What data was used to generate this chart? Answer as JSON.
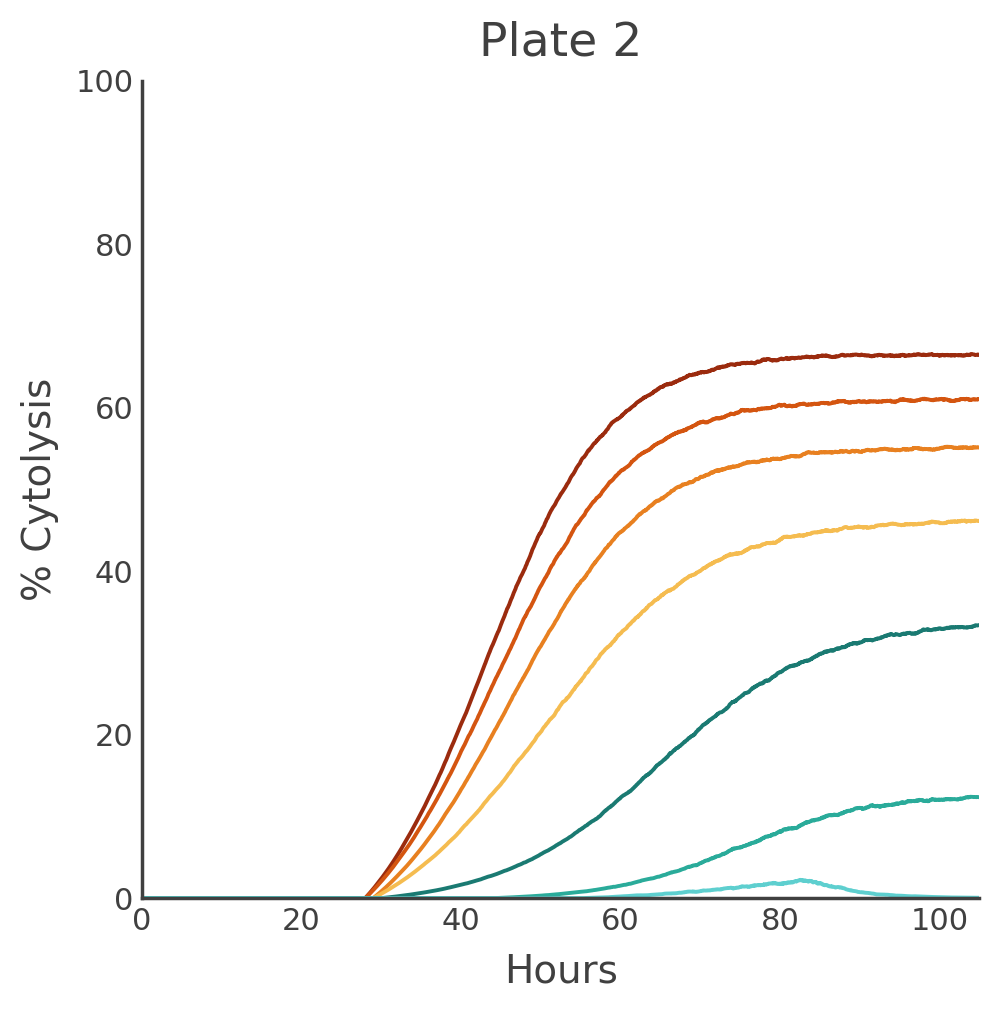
{
  "title": "Plate 2",
  "xlabel": "Hours",
  "ylabel": "% Cytolysis",
  "xlim": [
    0,
    105
  ],
  "ylim": [
    0,
    100
  ],
  "xticks": [
    0,
    20,
    40,
    60,
    80,
    100
  ],
  "yticks": [
    0,
    20,
    40,
    60,
    80,
    100
  ],
  "background_color": "#ffffff",
  "axis_color": "#404040",
  "title_fontsize": 34,
  "label_fontsize": 28,
  "tick_fontsize": 22,
  "line_width": 2.8,
  "curves": [
    {
      "color": "#9b2b0e",
      "max_val": 76,
      "midpoint": 43,
      "steepness": 0.13,
      "start": 28
    },
    {
      "color": "#d45510",
      "max_val": 70,
      "midpoint": 44,
      "steepness": 0.12,
      "start": 28
    },
    {
      "color": "#e88020",
      "max_val": 63,
      "midpoint": 46,
      "steepness": 0.115,
      "start": 29
    },
    {
      "color": "#f5bc50",
      "max_val": 52,
      "midpoint": 50,
      "steepness": 0.1,
      "start": 29
    },
    {
      "color": "#1a7a72",
      "max_val": 35,
      "midpoint": 65,
      "steepness": 0.1,
      "start": 30
    },
    {
      "color": "#2aab9a",
      "max_val": 13,
      "midpoint": 75,
      "steepness": 0.12,
      "start": 44
    },
    {
      "color": "#5ecfcf",
      "max_val": 4.0,
      "midpoint": 78,
      "steepness": 0.1,
      "start": 55,
      "decay": true,
      "decay_start": 84,
      "decay_rate": 0.18
    }
  ]
}
